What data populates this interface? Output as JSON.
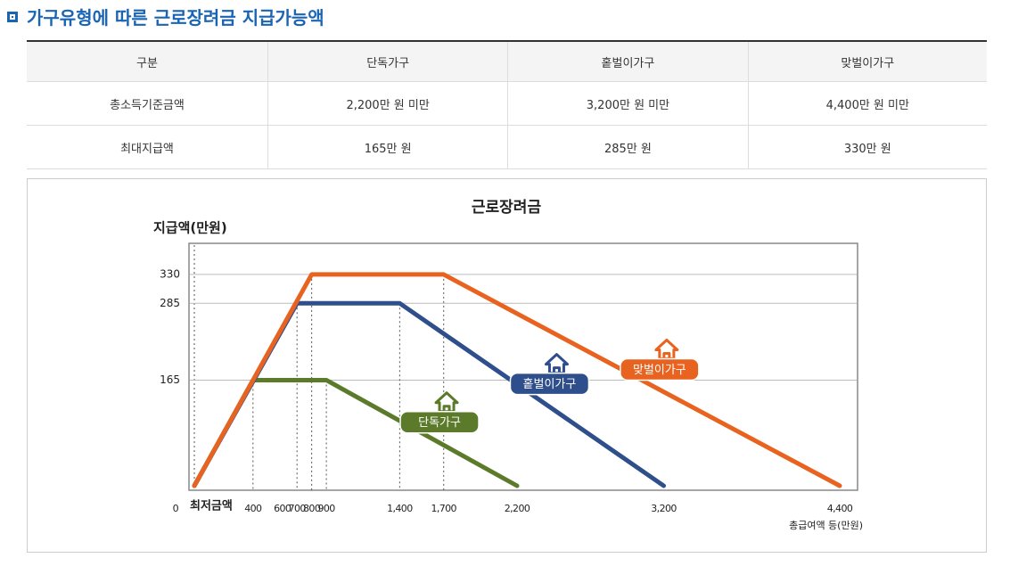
{
  "header": {
    "title": "가구유형에 따른 근로장려금 지급가능액"
  },
  "table": {
    "columns": [
      "구분",
      "단독가구",
      "홑벌이가구",
      "맞벌이가구"
    ],
    "rows": [
      [
        "총소득기준금액",
        "2,200만 원 미만",
        "3,200만 원 미만",
        "4,400만 원 미만"
      ],
      [
        "최대지급액",
        "165만 원",
        "285만 원",
        "330만 원"
      ]
    ]
  },
  "chart_data": {
    "type": "line",
    "title": "근로장려금",
    "y_label": "지급액(만원)",
    "x_label": "총급여액 등(만원)",
    "annotation": "최저금액",
    "xlim": [
      0,
      4400
    ],
    "ylim": [
      0,
      380
    ],
    "xticks": [
      0,
      400,
      600,
      700,
      800,
      900,
      {
        "value": 1400,
        "label": "1,400"
      },
      {
        "value": 1700,
        "label": "1,700"
      },
      {
        "value": 2200,
        "label": "2,200"
      },
      {
        "value": 3200,
        "label": "3,200"
      },
      {
        "value": 4400,
        "label": "4,400"
      }
    ],
    "yticks": [
      165,
      285,
      330
    ],
    "grid": true,
    "series": [
      {
        "name": "단독가구",
        "color": "#5b7b2b",
        "x": [
          0,
          400,
          900,
          2200
        ],
        "values": [
          0,
          165,
          165,
          0
        ]
      },
      {
        "name": "홑벌이가구",
        "color": "#2f4e8c",
        "x": [
          0,
          700,
          1400,
          3200
        ],
        "values": [
          0,
          285,
          285,
          0
        ]
      },
      {
        "name": "맞벌이가구",
        "color": "#e8631f",
        "x": [
          0,
          800,
          1700,
          4400
        ],
        "values": [
          0,
          330,
          330,
          0
        ]
      }
    ]
  }
}
